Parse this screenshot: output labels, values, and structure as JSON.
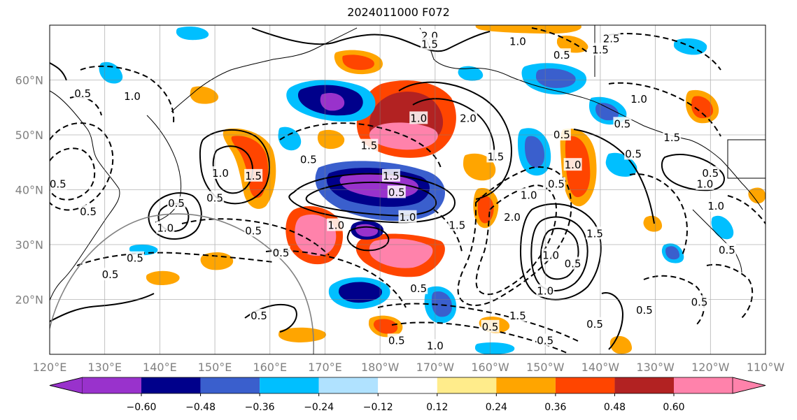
{
  "title": "2024011000 F072",
  "map": {
    "lat_labels": [
      "60°N",
      "50°N",
      "40°N",
      "30°N",
      "20°N"
    ],
    "lat_values": [
      60,
      50,
      40,
      30,
      20
    ],
    "lon_labels": [
      "120°E",
      "130°E",
      "140°E",
      "150°E",
      "160°E",
      "170°E",
      "180°W",
      "170°W",
      "160°W",
      "150°W",
      "140°W",
      "130°W",
      "120°W",
      "110°W"
    ],
    "lon_values": [
      120,
      130,
      140,
      150,
      160,
      170,
      180,
      190,
      200,
      210,
      220,
      230,
      240,
      250
    ],
    "lat_range": [
      10,
      70
    ],
    "lon_range": [
      120,
      250
    ],
    "gridlines": true
  },
  "colorbar": {
    "colors": [
      "#9932cc",
      "#00008b",
      "#3a5fcd",
      "#00bfff",
      "#b0e2ff",
      "#ffffff",
      "#ffec8b",
      "#ffa500",
      "#ff4500",
      "#b22222",
      "#ff82ab"
    ],
    "ticks": [
      "−0.60",
      "−0.48",
      "−0.36",
      "−0.24",
      "−0.12",
      "0.12",
      "0.24",
      "0.36",
      "0.48",
      "0.60"
    ],
    "tick_values": [
      -0.6,
      -0.48,
      -0.36,
      -0.24,
      -0.12,
      0.12,
      0.24,
      0.36,
      0.48,
      0.6
    ],
    "extend": "both"
  },
  "contour_labels": [
    {
      "text": "2.0",
      "lon": 189,
      "lat": 68
    },
    {
      "text": "1.5",
      "lon": 189,
      "lat": 66.5
    },
    {
      "text": "1.0",
      "lon": 205,
      "lat": 67
    },
    {
      "text": "0.5",
      "lon": 213,
      "lat": 64.5
    },
    {
      "text": "2.5",
      "lon": 222,
      "lat": 67.5
    },
    {
      "text": "1.5",
      "lon": 220,
      "lat": 65.5
    },
    {
      "text": "1.0",
      "lon": 227,
      "lat": 56.5
    },
    {
      "text": "1.5",
      "lon": 233,
      "lat": 49.5
    },
    {
      "text": "0.5",
      "lon": 224,
      "lat": 52
    },
    {
      "text": "0.5",
      "lon": 226,
      "lat": 46.5
    },
    {
      "text": "0.5",
      "lon": 240,
      "lat": 43
    },
    {
      "text": "1.0",
      "lon": 239,
      "lat": 41
    },
    {
      "text": "1.0",
      "lon": 241,
      "lat": 37
    },
    {
      "text": "0.5",
      "lon": 243,
      "lat": 29
    },
    {
      "text": "0.5",
      "lon": 238,
      "lat": 19.5
    },
    {
      "text": "0.5",
      "lon": 228,
      "lat": 18
    },
    {
      "text": "0.5",
      "lon": 219,
      "lat": 15.5
    },
    {
      "text": "0.5",
      "lon": 210,
      "lat": 12.5
    },
    {
      "text": "1.5",
      "lon": 205,
      "lat": 17
    },
    {
      "text": "0.5",
      "lon": 200,
      "lat": 15
    },
    {
      "text": "1.0",
      "lon": 190,
      "lat": 11.5
    },
    {
      "text": "0.5",
      "lon": 183,
      "lat": 12.5
    },
    {
      "text": "0.5",
      "lon": 187,
      "lat": 22
    },
    {
      "text": "1.0",
      "lon": 210,
      "lat": 21.5
    },
    {
      "text": "0.5",
      "lon": 215,
      "lat": 26.5
    },
    {
      "text": "1.5",
      "lon": 219,
      "lat": 32
    },
    {
      "text": "1.0",
      "lon": 211,
      "lat": 28
    },
    {
      "text": "2.0",
      "lon": 204,
      "lat": 35
    },
    {
      "text": "1.0",
      "lon": 207,
      "lat": 39
    },
    {
      "text": "1.5",
      "lon": 194,
      "lat": 33.5
    },
    {
      "text": "1.0",
      "lon": 185,
      "lat": 35
    },
    {
      "text": "0.5",
      "lon": 183,
      "lat": 39.5
    },
    {
      "text": "1.5",
      "lon": 182,
      "lat": 42.5
    },
    {
      "text": "1.0",
      "lon": 172,
      "lat": 33.5
    },
    {
      "text": "1.5",
      "lon": 178,
      "lat": 48
    },
    {
      "text": "2.0",
      "lon": 196,
      "lat": 53
    },
    {
      "text": "1.0",
      "lon": 187,
      "lat": 53
    },
    {
      "text": "1.5",
      "lon": 201,
      "lat": 46
    },
    {
      "text": "0.5",
      "lon": 213,
      "lat": 50
    },
    {
      "text": "1.0",
      "lon": 215,
      "lat": 44.5
    },
    {
      "text": "0.5",
      "lon": 212,
      "lat": 41
    },
    {
      "text": "0.5",
      "lon": 167,
      "lat": 45.5
    },
    {
      "text": "1.5",
      "lon": 157,
      "lat": 42.5
    },
    {
      "text": "1.0",
      "lon": 151,
      "lat": 43
    },
    {
      "text": "1.0",
      "lon": 141,
      "lat": 33
    },
    {
      "text": "0.5",
      "lon": 143,
      "lat": 37.5
    },
    {
      "text": "0.5",
      "lon": 150,
      "lat": 38.5
    },
    {
      "text": "0.5",
      "lon": 157,
      "lat": 32.5
    },
    {
      "text": "0.5",
      "lon": 162,
      "lat": 28.5
    },
    {
      "text": "0.5",
      "lon": 135.5,
      "lat": 27.5
    },
    {
      "text": "0.5",
      "lon": 131,
      "lat": 24.5
    },
    {
      "text": "0.5",
      "lon": 158,
      "lat": 17
    },
    {
      "text": "0.5",
      "lon": 126,
      "lat": 57.5
    },
    {
      "text": "1.0",
      "lon": 135,
      "lat": 57
    },
    {
      "text": "0.5",
      "lon": 121.5,
      "lat": 41
    },
    {
      "text": "0.5",
      "lon": 127,
      "lat": 36
    }
  ],
  "contour_label_boxes": [
    {
      "text": "2.0",
      "lon": 189,
      "lat": 68
    },
    {
      "text": "0.5",
      "lon": 187,
      "lat": 22
    }
  ]
}
